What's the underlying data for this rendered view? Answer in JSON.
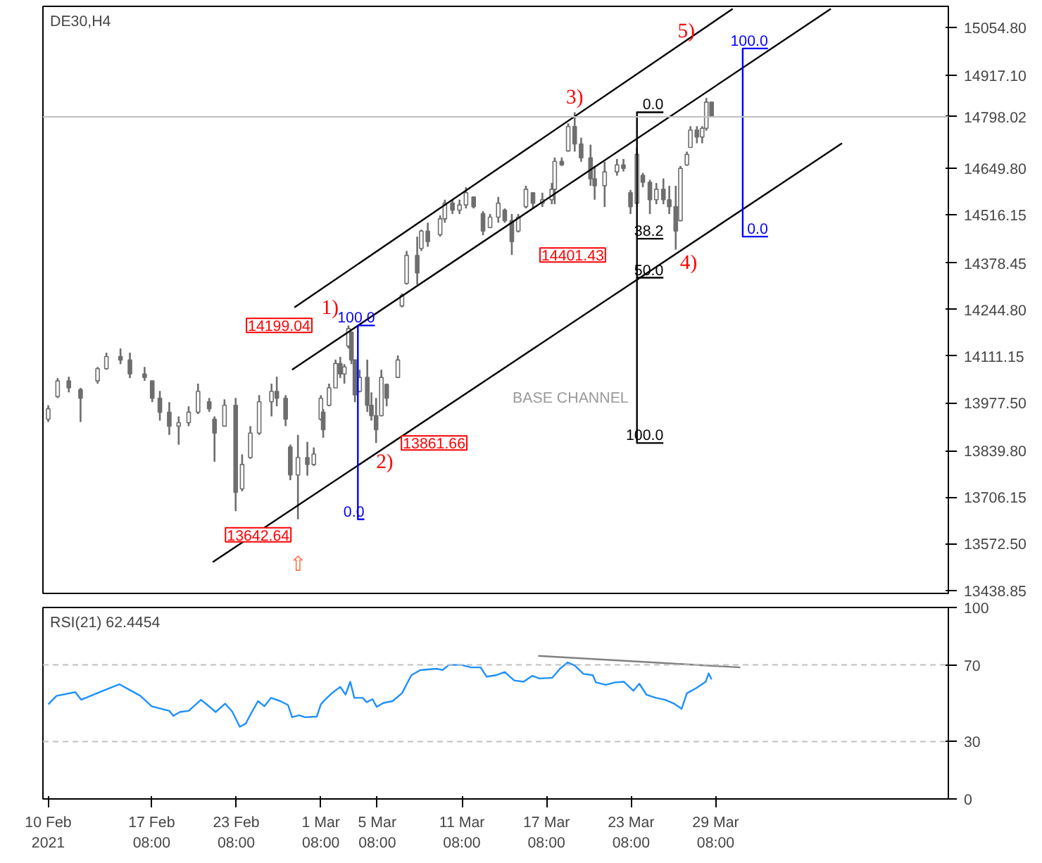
{
  "chart_data": [
    {
      "type": "candlestick",
      "title": "DE30,H4",
      "color": "#6e6e6e",
      "x": [
        "2021-02-10T00:00",
        "2021-02-10T16:00",
        "2021-02-11T11:00",
        "2021-02-12T07:00",
        "2021-02-13T12:00",
        "2021-02-14T03:00",
        "2021-02-15T03:00",
        "2021-02-15T19:00",
        "2021-02-16T20:00",
        "2021-02-17T09:00",
        "2021-02-17T22:00",
        "2021-02-18T14:00",
        "2021-02-19T06:00",
        "2021-02-19T23:00",
        "2021-02-20T15:00",
        "2021-02-21T10:00",
        "2021-02-21T19:00",
        "2021-02-22T12:00",
        "2021-02-23T07:00",
        "2021-02-23T18:00",
        "2021-02-24T08:00",
        "2021-02-24T23:00",
        "2021-02-25T20:00",
        "2021-02-26T05:00",
        "2021-02-26T20:00",
        "2021-02-27T04:00",
        "2021-02-27T17:00",
        "2021-02-28T09:00",
        "2021-02-28T20:00",
        "2021-03-01T08:00",
        "2021-03-01T12:00",
        "2021-03-01T22:00",
        "2021-03-02T09:00",
        "2021-03-02T17:00",
        "2021-03-03T00:00",
        "2021-03-03T07:00",
        "2021-03-03T12:00",
        "2021-03-03T18:00",
        "2021-03-04T02:00",
        "2021-03-04T15:00",
        "2021-03-04T22:00",
        "2021-03-05T06:00",
        "2021-03-05T15:00",
        "2021-03-06T00:00",
        "2021-03-06T19:00",
        "2021-03-07T02:00",
        "2021-03-07T10:00",
        "2021-03-08T04:00",
        "2021-03-08T11:00",
        "2021-03-08T22:00",
        "2021-03-09T19:00",
        "2021-03-10T03:00",
        "2021-03-10T16:00",
        "2021-03-11T04:00",
        "2021-03-11T15:00",
        "2021-03-12T04:00",
        "2021-03-12T20:00",
        "2021-03-13T08:00",
        "2021-03-13T22:00",
        "2021-03-14T09:00",
        "2021-03-14T21:00",
        "2021-03-15T08:00",
        "2021-03-15T21:00",
        "2021-03-16T09:00",
        "2021-03-17T01:00",
        "2021-03-17T17:00",
        "2021-03-17T22:00",
        "2021-03-18T10:00",
        "2021-03-18T21:00",
        "2021-03-19T08:00",
        "2021-03-19T19:00",
        "2021-03-20T11:00",
        "2021-03-20T18:00",
        "2021-03-21T11:00",
        "2021-03-22T08:00",
        "2021-03-22T19:00",
        "2021-03-23T07:00",
        "2021-03-23T18:00",
        "2021-03-24T04:00",
        "2021-03-24T16:00",
        "2021-03-25T03:00",
        "2021-03-25T15:00",
        "2021-03-26T01:00",
        "2021-03-26T12:00",
        "2021-03-26T20:00",
        "2021-03-27T07:00",
        "2021-03-27T13:00",
        "2021-03-28T00:00",
        "2021-03-28T09:00",
        "2021-03-28T16:00",
        "2021-03-29T01:00"
      ],
      "ohlc": [
        [
          13930,
          13970,
          13922,
          13960
        ],
        [
          13995,
          14048,
          13991,
          14040
        ],
        [
          14040,
          14052,
          14007,
          14020
        ],
        [
          14015,
          14020,
          13922,
          13990
        ],
        [
          14040,
          14080,
          14032,
          14075
        ],
        [
          14075,
          14121,
          14072,
          14110
        ],
        [
          14110,
          14133,
          14088,
          14100
        ],
        [
          14100,
          14121,
          14048,
          14060
        ],
        [
          14060,
          14080,
          14040,
          14050
        ],
        [
          14040,
          14040,
          13979,
          13990
        ],
        [
          13990,
          14011,
          13926,
          13950
        ],
        [
          13950,
          13979,
          13885,
          13910
        ],
        [
          13910,
          13938,
          13857,
          13920
        ],
        [
          13920,
          13967,
          13910,
          13950
        ],
        [
          13950,
          14032,
          13945,
          14010
        ],
        [
          13980,
          13991,
          13951,
          13960
        ],
        [
          13930,
          13938,
          13808,
          13890
        ],
        [
          13910,
          13987,
          13910,
          13970
        ],
        [
          13970,
          13991,
          13666,
          13720
        ],
        [
          13730,
          13829,
          13723,
          13800
        ],
        [
          13820,
          13910,
          13816,
          13890
        ],
        [
          13890,
          13999,
          13885,
          13980
        ],
        [
          13980,
          14032,
          13938,
          14010
        ],
        [
          14010,
          14052,
          13967,
          13990
        ],
        [
          13990,
          13999,
          13910,
          13930
        ],
        [
          13850,
          13857,
          13755,
          13770
        ],
        [
          13770,
          13885,
          13642.64,
          13820
        ],
        [
          13820,
          13865,
          13768,
          13800
        ],
        [
          13800,
          13849,
          13796,
          13830
        ],
        [
          13930,
          13999,
          13926,
          13990
        ],
        [
          13950,
          13959,
          13877,
          13900
        ],
        [
          13970,
          14032,
          13967,
          14020
        ],
        [
          14020,
          14101,
          14020,
          14090
        ],
        [
          14090,
          14109,
          14048,
          14060
        ],
        [
          14060,
          14088,
          14032,
          14080
        ],
        [
          14140,
          14199.04,
          14133,
          14190
        ],
        [
          14180,
          14180,
          14088,
          14100
        ],
        [
          14100,
          14101,
          13979,
          14000
        ],
        [
          14010,
          14072,
          14007,
          14050
        ],
        [
          14050,
          14101,
          13951,
          13970
        ],
        [
          13970,
          14007,
          13926,
          13940
        ],
        [
          13940,
          13991,
          13861.66,
          13900
        ],
        [
          13940,
          14072,
          13938,
          14050
        ],
        [
          14030,
          14032,
          13967,
          13990
        ],
        [
          14050,
          14113,
          14048,
          14100
        ],
        [
          14255,
          14291,
          14251,
          14285
        ],
        [
          14320,
          14413,
          14316,
          14400
        ],
        [
          14400,
          14454,
          14316,
          14350
        ],
        [
          14420,
          14474,
          14413,
          14470
        ],
        [
          14470,
          14494,
          14425,
          14440
        ],
        [
          14460,
          14515,
          14454,
          14505
        ],
        [
          14505,
          14560,
          14494,
          14550
        ],
        [
          14550,
          14560,
          14519,
          14530
        ],
        [
          14530,
          14560,
          14519,
          14545
        ],
        [
          14545,
          14596,
          14535,
          14580
        ],
        [
          14568,
          14568,
          14535,
          14540
        ],
        [
          14520,
          14527,
          14458,
          14470
        ],
        [
          14480,
          14519,
          14478,
          14510
        ],
        [
          14510,
          14568,
          14494,
          14550
        ],
        [
          14530,
          14535,
          14494,
          14500
        ],
        [
          14500,
          14519,
          14401.43,
          14440
        ],
        [
          14470,
          14519,
          14466,
          14510
        ],
        [
          14540,
          14600,
          14535,
          14590
        ],
        [
          14580,
          14580,
          14535,
          14550
        ],
        [
          14550,
          14580,
          14539,
          14560
        ],
        [
          14560,
          14608,
          14547,
          14590
        ],
        [
          14590,
          14681,
          14547,
          14670
        ],
        [
          14670,
          14681,
          14657,
          14660
        ],
        [
          14700,
          14779,
          14698,
          14770
        ],
        [
          14770,
          14811,
          14698,
          14720
        ],
        [
          14720,
          14738,
          14669,
          14680
        ],
        [
          14680,
          14718,
          14600,
          14620
        ],
        [
          14620,
          14657,
          14560,
          14600
        ],
        [
          14600,
          14669,
          14539,
          14640
        ],
        [
          14640,
          14677,
          14629,
          14660
        ],
        [
          14660,
          14677,
          14641,
          14650
        ],
        [
          14580,
          14588,
          14519,
          14540
        ],
        [
          14550,
          14710,
          14547,
          14690
        ],
        [
          14630,
          14637,
          14596,
          14610
        ],
        [
          14610,
          14617,
          14519,
          14560
        ],
        [
          14560,
          14608,
          14547,
          14590
        ],
        [
          14590,
          14621,
          14547,
          14560
        ],
        [
          14560,
          14600,
          14519,
          14540
        ],
        [
          14540,
          14600,
          14417,
          14470
        ],
        [
          14500,
          14657,
          14498,
          14650
        ],
        [
          14660,
          14698,
          14657,
          14690
        ],
        [
          14710,
          14771,
          14710,
          14760
        ],
        [
          14760,
          14771,
          14722,
          14740
        ],
        [
          14740,
          14771,
          14722,
          14765
        ],
        [
          14765,
          14852,
          14758,
          14840
        ],
        [
          14840,
          14840,
          14798.02,
          14798.02
        ]
      ],
      "series": [
        {
          "type": "line",
          "color": "#000000",
          "x": [
            "2021-02-27T11:00",
            "2021-03-30T13:00"
          ],
          "values": [
            14251,
            15108
          ]
        },
        {
          "type": "line",
          "color": "#000000",
          "x": [
            "2021-02-27T07:00",
            "2021-04-06T12:00"
          ],
          "values": [
            14072,
            15108
          ]
        },
        {
          "type": "line",
          "color": "#000000",
          "x": [
            "2021-02-21T16:00",
            "2021-04-07T07:00"
          ],
          "values": [
            13520,
            14722
          ]
        },
        {
          "type": "line",
          "color": "#0000ff",
          "x": [
            "2021-03-05T04:00",
            "2021-03-03T23:00",
            "2021-03-03T23:00",
            "2021-03-04T10:00"
          ],
          "values": [
            14199.04,
            14199.04,
            13642.64,
            13642.64
          ]
        },
        {
          "type": "line",
          "color": "#000000",
          "x": [
            "2021-03-25T15:00",
            "2021-03-23T18:00",
            "2021-03-23T18:00",
            "2021-03-25T15:00"
          ],
          "values": [
            14811,
            14811,
            13861.66,
            13861.66
          ]
        },
        {
          "type": "line",
          "color": "#000000",
          "x": [
            "2021-03-23T18:00",
            "2021-03-25T15:00"
          ],
          "values": [
            14448,
            14448
          ]
        },
        {
          "type": "line",
          "color": "#000000",
          "x": [
            "2021-03-23T18:00",
            "2021-03-25T15:00"
          ],
          "values": [
            14336,
            14336
          ]
        },
        {
          "type": "line",
          "color": "#0000ff",
          "x": [
            "2021-04-02T01:00",
            "2021-03-31T06:00",
            "2021-03-31T06:00",
            "2021-04-02T01:00"
          ],
          "values": [
            14994,
            14994,
            14454,
            14454
          ]
        }
      ],
      "xlim": [
        "2021-02-09T15:00",
        "2021-04-14T20:00"
      ],
      "ylim": [
        13430,
        15115
      ],
      "yticks": [
        {
          "value": 13438.85,
          "label": "13438.85"
        },
        {
          "value": 13572.5,
          "label": "13572.50"
        },
        {
          "value": 13706.15,
          "label": "13706.15"
        },
        {
          "value": 13839.8,
          "label": "13839.80"
        },
        {
          "value": 13977.5,
          "label": "13977.50"
        },
        {
          "value": 14111.15,
          "label": "14111.15"
        },
        {
          "value": 14244.8,
          "label": "14244.80"
        },
        {
          "value": 14378.45,
          "label": "14378.45"
        },
        {
          "value": 14516.15,
          "label": "14516.15"
        },
        {
          "value": 14649.8,
          "label": "14649.80"
        },
        {
          "value": 14917.1,
          "label": "14917.10"
        },
        {
          "value": 15054.8,
          "label": "15054.80"
        }
      ],
      "ref_lines": [
        {
          "axis": "y",
          "value": 14798.02,
          "label": "14798.02",
          "color": "#c0c0c0"
        }
      ],
      "annotations": [
        {
          "text": "1)",
          "x": "2021-03-03T07:00",
          "y": 14199.04
        },
        {
          "text": "2)",
          "x": "2021-03-05T06:00",
          "y": 13861.66
        },
        {
          "text": "3)",
          "x": "2021-03-19T08:00",
          "y": 14811
        },
        {
          "text": "4)",
          "x": "2021-03-26T12:00",
          "y": 14417
        },
        {
          "text": "5)",
          "x": "2021-03-31T06:00",
          "y": 14994
        },
        {
          "text": "14199.04",
          "x": "2021-03-03T07:00",
          "y": 14199.04
        },
        {
          "text": "13861.66",
          "x": "2021-03-05T06:00",
          "y": 13861.66
        },
        {
          "text": "14401.43",
          "x": "2021-03-14T21:00",
          "y": 14401.43
        },
        {
          "text": "13642.64",
          "x": "2021-02-27T17:00",
          "y": 13642.64
        },
        {
          "text": "BASE CHANNEL",
          "x": "2021-03-23T18:00",
          "y": 13990
        },
        {
          "text": "⇧",
          "x": "2021-02-27T17:00",
          "y": 13642.64
        },
        {
          "text": "100.0",
          "x": "2021-03-05T04:00",
          "y": 14199.04
        },
        {
          "text": "0.0",
          "x": "2021-03-04T10:00",
          "y": 13642.64
        },
        {
          "text": "0.0",
          "x": "2021-03-25T15:00",
          "y": 14811
        },
        {
          "text": "38.2",
          "x": "2021-03-25T15:00",
          "y": 14448
        },
        {
          "text": "50.0",
          "x": "2021-03-25T15:00",
          "y": 14336
        },
        {
          "text": "100.0",
          "x": "2021-03-25T15:00",
          "y": 13861.66
        },
        {
          "text": "100.0",
          "x": "2021-04-02T01:00",
          "y": 14994
        },
        {
          "text": "0.0",
          "x": "2021-04-02T01:00",
          "y": 14454
        }
      ],
      "tick_labels": "y"
    },
    {
      "type": "line",
      "title": "RSI(21) 62.4454",
      "series": [
        {
          "type": "line",
          "color": "#1e90ff",
          "x": [
            "2021-02-10T00:00",
            "2021-02-10T14:00",
            "2021-02-11T22:00",
            "2021-02-12T08:00",
            "2021-02-13T00:00",
            "2021-02-14T03:00",
            "2021-02-15T01:00",
            "2021-02-15T17:00",
            "2021-02-16T13:00",
            "2021-02-17T08:00",
            "2021-02-18T00:00",
            "2021-02-18T14:00",
            "2021-02-18T21:00",
            "2021-02-19T08:00",
            "2021-02-19T23:00",
            "2021-02-20T20:00",
            "2021-02-21T08:00",
            "2021-02-21T21:00",
            "2021-02-22T13:00",
            "2021-02-23T01:00",
            "2021-02-23T14:00",
            "2021-02-24T00:00",
            "2021-02-24T10:00",
            "2021-02-24T21:00",
            "2021-02-25T08:00",
            "2021-02-25T19:00",
            "2021-02-26T11:00",
            "2021-02-27T00:00",
            "2021-02-27T07:00",
            "2021-02-27T19:00",
            "2021-02-28T05:00",
            "2021-03-01T01:00",
            "2021-03-01T08:00",
            "2021-03-01T15:00",
            "2021-03-02T05:00",
            "2021-03-02T17:00",
            "2021-03-03T02:00",
            "2021-03-03T10:00",
            "2021-03-03T17:00",
            "2021-03-04T07:00",
            "2021-03-04T14:00",
            "2021-03-05T00:00",
            "2021-03-05T07:00",
            "2021-03-05T18:00",
            "2021-03-06T10:00",
            "2021-03-07T02:00",
            "2021-03-07T18:00",
            "2021-03-08T09:00",
            "2021-03-09T13:00",
            "2021-03-09T23:00",
            "2021-03-10T10:00",
            "2021-03-11T07:00",
            "2021-03-12T00:00",
            "2021-03-12T16:00",
            "2021-03-13T02:00",
            "2021-03-13T18:00",
            "2021-03-14T09:00",
            "2021-03-15T01:00",
            "2021-03-15T17:00",
            "2021-03-16T08:00",
            "2021-03-16T20:00",
            "2021-03-17T18:00",
            "2021-03-18T07:00",
            "2021-03-18T20:00",
            "2021-03-19T08:00",
            "2021-03-19T23:00",
            "2021-03-20T15:00",
            "2021-03-20T20:00",
            "2021-03-21T13:00",
            "2021-03-22T05:00",
            "2021-03-22T20:00",
            "2021-03-23T12:00",
            "2021-03-23T22:00",
            "2021-03-24T10:00",
            "2021-03-25T02:00",
            "2021-03-25T18:00",
            "2021-03-26T09:00",
            "2021-03-26T22:00",
            "2021-03-27T07:00",
            "2021-03-27T23:00",
            "2021-03-28T15:00",
            "2021-03-28T20:00",
            "2021-03-29T01:00"
          ],
          "values": [
            49.4,
            53.8,
            55.8,
            51.8,
            53.8,
            57.2,
            59.9,
            57.2,
            53.8,
            48.4,
            47.1,
            46.0,
            43.4,
            45.4,
            46.0,
            51.8,
            48.8,
            45.4,
            49.8,
            45.7,
            37.7,
            39.3,
            45.1,
            51.1,
            48.4,
            52.8,
            51.1,
            49.1,
            42.7,
            43.7,
            42.7,
            43.0,
            49.4,
            51.8,
            55.8,
            58.5,
            54.5,
            61.2,
            52.8,
            52.8,
            50.5,
            52.1,
            48.1,
            50.1,
            51.1,
            55.2,
            64.6,
            67.3,
            68.0,
            67.3,
            70.0,
            70.0,
            68.7,
            68.7,
            63.9,
            64.6,
            66.3,
            61.9,
            61.2,
            64.3,
            62.9,
            63.3,
            68.0,
            71.3,
            69.7,
            65.3,
            64.6,
            60.9,
            59.6,
            60.9,
            61.2,
            56.5,
            60.2,
            54.5,
            52.8,
            51.8,
            49.8,
            47.1,
            55.2,
            57.9,
            61.2,
            65.6,
            62.4
          ]
        },
        {
          "type": "line",
          "color": "#808080",
          "x": [
            "2021-03-16T18:00",
            "2021-03-31T02:00"
          ],
          "values": [
            74.7,
            68.7
          ]
        }
      ],
      "xlim": [
        "2021-02-09T15:00",
        "2021-04-14T20:00"
      ],
      "ylim": [
        0,
        100
      ],
      "yticks": [
        0,
        30,
        70,
        100
      ],
      "xticks": [
        {
          "value": "2021-02-10T00:00",
          "label": "10 Feb 2021"
        },
        {
          "value": "2021-02-17T08:00",
          "label": "17 Feb 08:00"
        },
        {
          "value": "2021-02-23T08:00",
          "label": "23 Feb 08:00"
        },
        {
          "value": "2021-03-01T08:00",
          "label": "1 Mar 08:00"
        },
        {
          "value": "2021-03-05T08:00",
          "label": "5 Mar 08:00"
        },
        {
          "value": "2021-03-11T08:00",
          "label": "11 Mar 08:00"
        },
        {
          "value": "2021-03-17T08:00",
          "label": "17 Mar 08:00"
        },
        {
          "value": "2021-03-23T08:00",
          "label": "23 Mar 08:00"
        },
        {
          "value": "2021-03-29T08:00",
          "label": "29 Mar 08:00"
        }
      ],
      "ref_lines": [
        {
          "axis": "y",
          "value": 70,
          "label": null,
          "color": "#c0c0c0",
          "line_style": "dashed"
        },
        {
          "axis": "y",
          "value": 30,
          "label": null,
          "color": "#c0c0c0",
          "line_style": "dashed"
        }
      ]
    }
  ]
}
